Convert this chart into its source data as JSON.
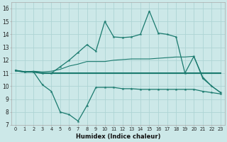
{
  "bg_color": "#cce8e8",
  "grid_color": "#aed4d4",
  "line_color": "#1a7a6e",
  "xlabel": "Humidex (Indice chaleur)",
  "xlim": [
    -0.5,
    23.5
  ],
  "ylim": [
    7,
    16.5
  ],
  "x": [
    0,
    1,
    2,
    3,
    4,
    5,
    6,
    7,
    8,
    9,
    10,
    11,
    12,
    13,
    14,
    15,
    16,
    17,
    18,
    19,
    20,
    21,
    22,
    23
  ],
  "y_max": [
    11.2,
    11.1,
    11.1,
    11.0,
    11.0,
    11.5,
    12.0,
    12.6,
    13.2,
    12.7,
    15.0,
    13.8,
    13.75,
    13.8,
    14.0,
    15.8,
    14.1,
    14.0,
    13.8,
    11.0,
    12.3,
    10.6,
    10.0,
    9.5
  ],
  "y_mean": [
    11.2,
    11.1,
    11.1,
    11.0,
    11.0,
    11.0,
    11.0,
    11.0,
    11.0,
    11.0,
    11.0,
    11.0,
    11.0,
    11.0,
    11.0,
    11.0,
    11.0,
    11.0,
    11.0,
    11.0,
    11.0,
    11.0,
    11.0,
    11.0
  ],
  "y_upper2": [
    11.2,
    11.1,
    11.15,
    11.1,
    11.15,
    11.3,
    11.55,
    11.7,
    11.9,
    11.9,
    11.9,
    12.0,
    12.05,
    12.1,
    12.1,
    12.1,
    12.15,
    12.2,
    12.25,
    12.25,
    12.3,
    10.7,
    10.0,
    9.5
  ],
  "y_min": [
    11.2,
    11.1,
    11.1,
    10.1,
    9.6,
    8.0,
    7.8,
    7.3,
    8.5,
    9.9,
    9.9,
    9.9,
    9.8,
    9.8,
    9.75,
    9.75,
    9.75,
    9.75,
    9.75,
    9.75,
    9.75,
    9.6,
    9.5,
    9.4
  ],
  "yticks": [
    7,
    8,
    9,
    10,
    11,
    12,
    13,
    14,
    15,
    16
  ],
  "xticks": [
    0,
    1,
    2,
    3,
    4,
    5,
    6,
    7,
    8,
    9,
    10,
    11,
    12,
    13,
    14,
    15,
    16,
    17,
    18,
    19,
    20,
    21,
    22,
    23
  ]
}
